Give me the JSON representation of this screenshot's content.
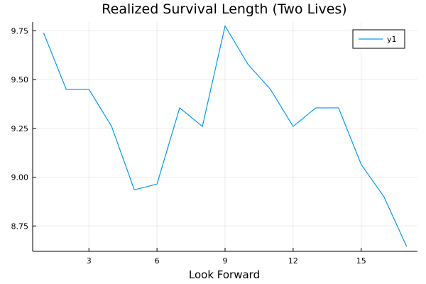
{
  "chart_data": {
    "type": "line",
    "title": "Realized Survival Length (Two Lives)",
    "xlabel": "Look Forward",
    "ylabel": "",
    "x": [
      1,
      2,
      3,
      4,
      5,
      6,
      7,
      8,
      9,
      10,
      11,
      12,
      13,
      14,
      15,
      16,
      17
    ],
    "series": [
      {
        "name": "y1",
        "color": "#009AFA",
        "values": [
          9.74,
          9.45,
          9.45,
          9.26,
          8.935,
          8.965,
          9.355,
          9.26,
          9.775,
          9.58,
          9.45,
          9.26,
          9.355,
          9.355,
          9.065,
          8.9,
          8.645
        ]
      }
    ],
    "xlim": [
      0.52,
      17.48
    ],
    "ylim": [
      8.62,
      9.795
    ],
    "xticks": [
      3,
      6,
      9,
      12,
      15
    ],
    "xtick_labels": [
      "3",
      "6",
      "9",
      "12",
      "15"
    ],
    "yticks": [
      8.75,
      9.0,
      9.25,
      9.5,
      9.75
    ],
    "ytick_labels": [
      "8.75",
      "9.00",
      "9.25",
      "9.50",
      "9.75"
    ],
    "grid": true,
    "legend_position": "top-right"
  }
}
